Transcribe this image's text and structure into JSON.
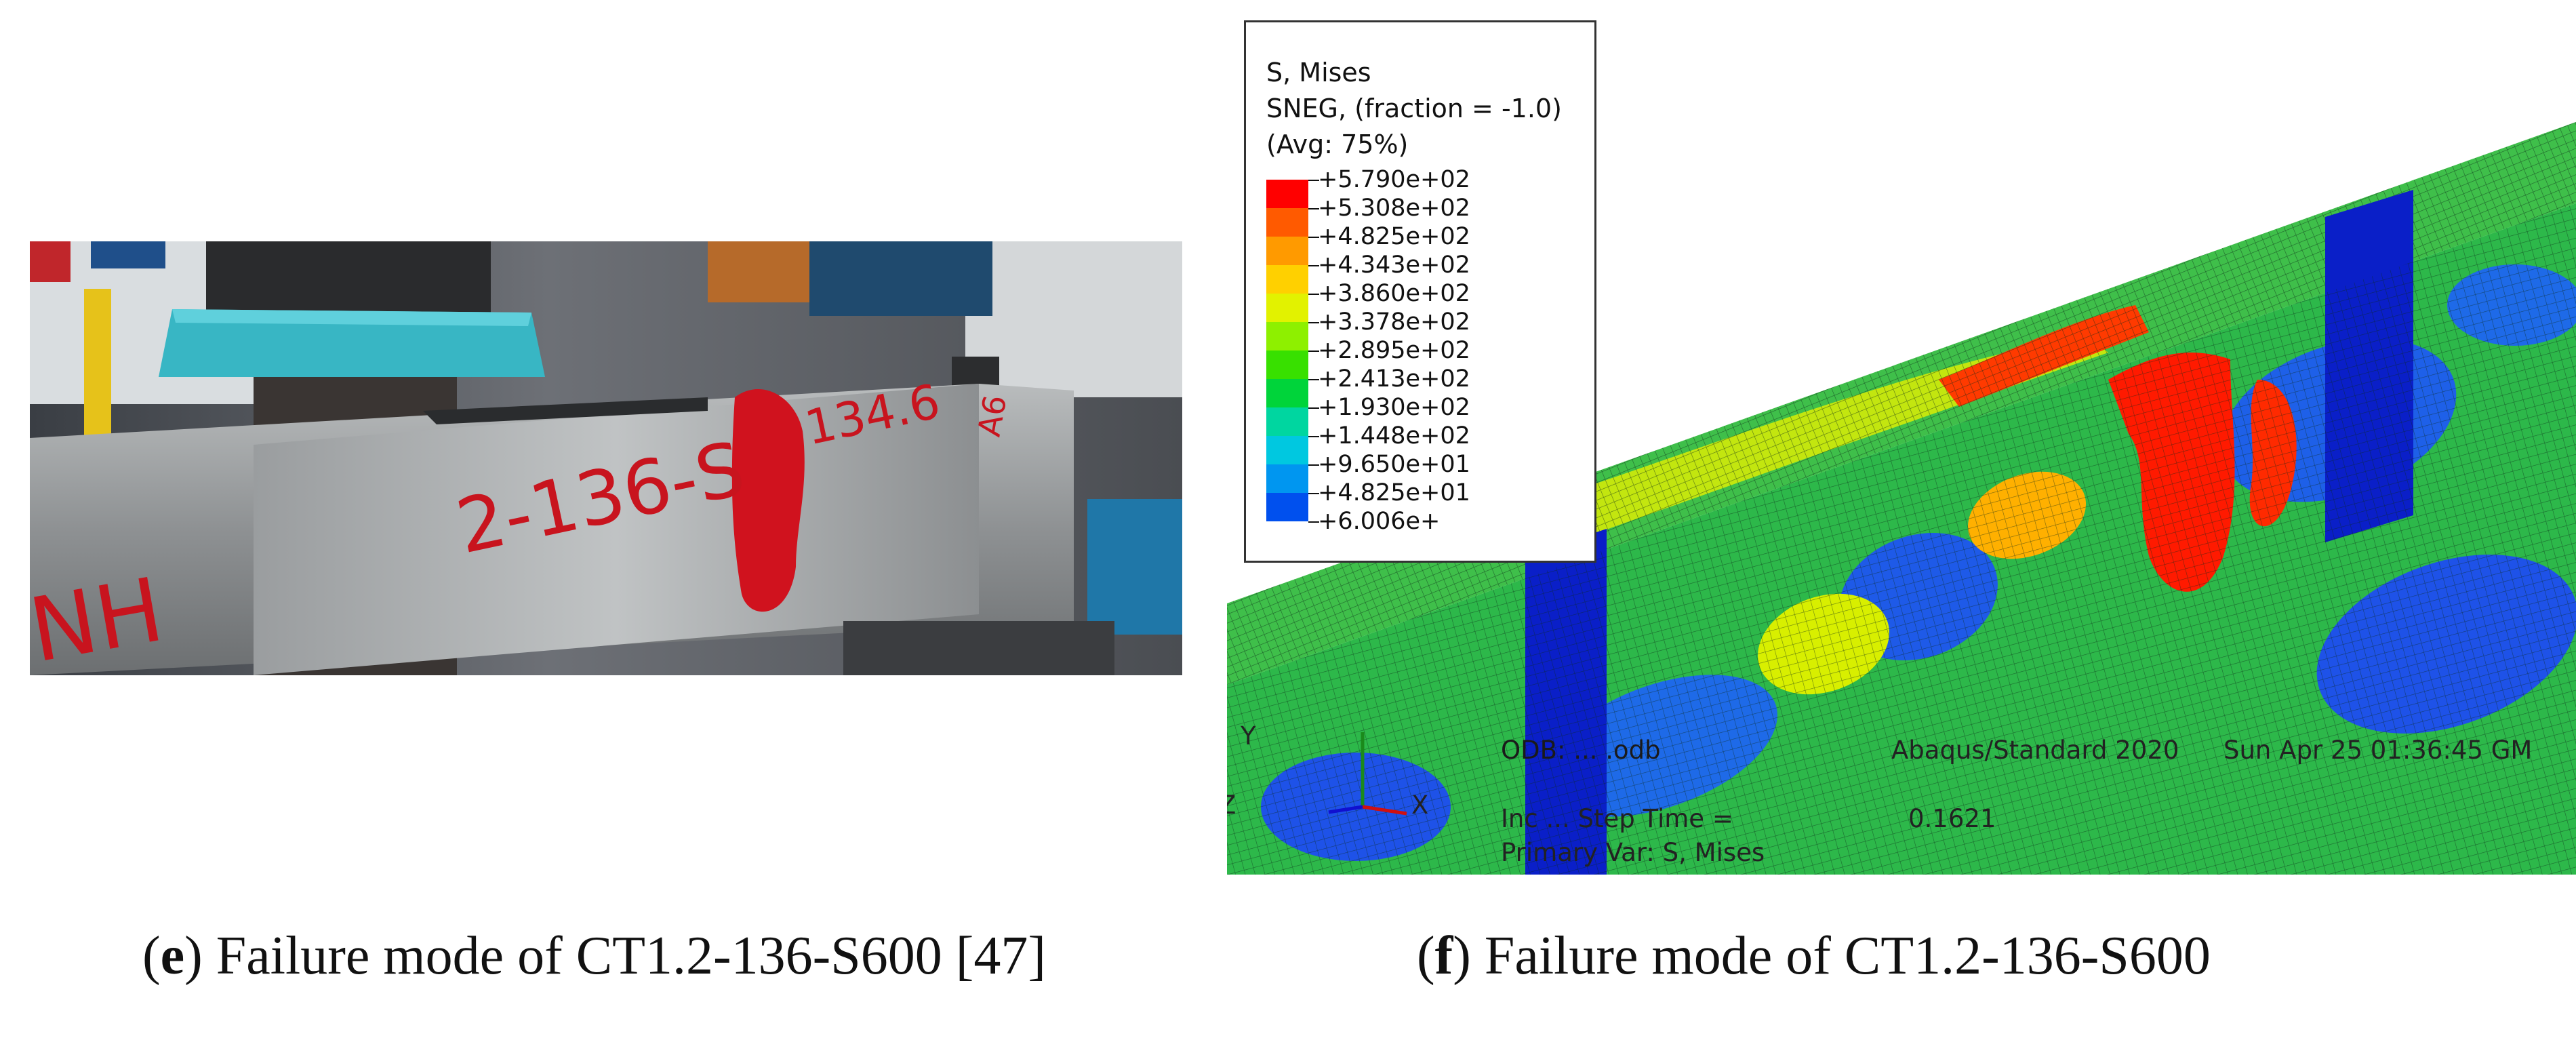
{
  "captions": {
    "e": {
      "letter": "e",
      "open": "(",
      "close": ")",
      "text": " Failure mode of CT1.2-136-S600 [47]"
    },
    "f": {
      "letter": "f",
      "open": "(",
      "close": ")",
      "text": " Failure mode of CT1.2-136-S600"
    }
  },
  "photo": {
    "specimen_marking": "2-136-S",
    "specimen_marking_2": "134.6",
    "side_marking": "NH",
    "end_marking": "A6"
  },
  "legend": {
    "title": "S, Mises",
    "subtitle": "SNEG, (fraction = -1.0)",
    "avg": "(Avg: 75%)",
    "values": [
      "+5.790e+02",
      "+5.308e+02",
      "+4.825e+02",
      "+4.343e+02",
      "+3.860e+02",
      "+3.378e+02",
      "+2.895e+02",
      "+2.413e+02",
      "+1.930e+02",
      "+1.448e+02",
      "+9.650e+01",
      "+4.825e+01",
      "+6.006e+"
    ],
    "colors": [
      "#ff0000",
      "#ff5a00",
      "#ff9a00",
      "#ffd000",
      "#e2f200",
      "#8ef000",
      "#38e000",
      "#00d43a",
      "#00d6a0",
      "#00c8e0",
      "#0096f0",
      "#0050ee",
      "#0000dd"
    ]
  },
  "viewport": {
    "odb_label": "ODB: ... .odb",
    "solver": "Abaqus/Standard 2020",
    "date": "Sun Apr 25 01:36:45 GM",
    "step_line": "Inc ... Step Time =",
    "step_time": "0.1621",
    "primary_var": "Primary Var: S, Mises",
    "triad": {
      "y": "Y",
      "z": "Z",
      "x": "X"
    }
  }
}
